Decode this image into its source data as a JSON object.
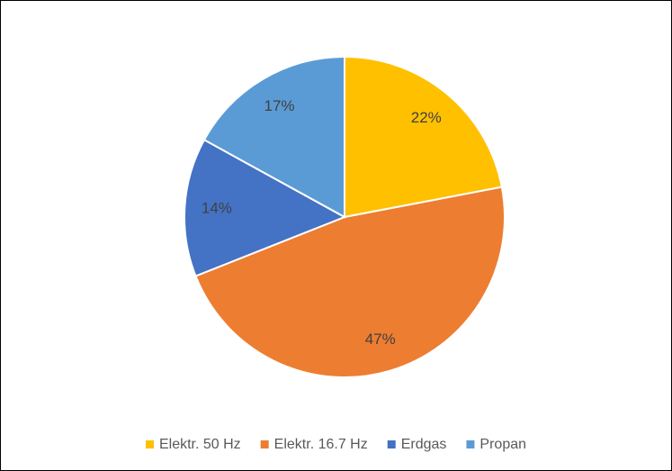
{
  "chart_data": {
    "type": "pie",
    "categories": [
      "Elektr. 50 Hz",
      "Elektr. 16.7 Hz",
      "Erdgas",
      "Propan"
    ],
    "values": [
      22,
      47,
      14,
      17
    ],
    "value_labels": [
      "22%",
      "47%",
      "14%",
      "17%"
    ],
    "colors": [
      "#FFC000",
      "#ED7D31",
      "#4472C4",
      "#5B9BD5"
    ],
    "legend": "bottom"
  }
}
